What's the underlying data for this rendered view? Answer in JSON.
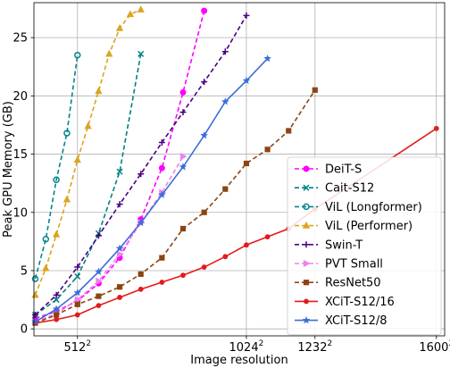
{
  "chart_data": {
    "type": "line",
    "title": "",
    "xlabel": "Image resolution",
    "ylabel": "Peak GPU Memory (GB)",
    "xlim": [
      380,
      1625
    ],
    "ylim": [
      -0.6,
      28
    ],
    "xticks": [
      {
        "value": 512,
        "base": "512",
        "exp": "2"
      },
      {
        "value": 1024,
        "base": "1024",
        "exp": "2"
      },
      {
        "value": 1232,
        "base": "1232",
        "exp": "2"
      },
      {
        "value": 1600,
        "base": "1600",
        "exp": "2"
      }
    ],
    "yticks": [
      0,
      5,
      10,
      15,
      20,
      25
    ],
    "grid": true,
    "legend_position": "lower-right",
    "series": [
      {
        "name": "DeiT-S",
        "color": "#ff00ff",
        "marker": "circle",
        "x": [
          384,
          448,
          512,
          576,
          640,
          704,
          768,
          832,
          896
        ],
        "y": [
          0.9,
          1.5,
          2.4,
          3.9,
          6.1,
          9.4,
          13.8,
          20.3,
          27.3
        ]
      },
      {
        "name": "Cait-S12",
        "color": "#008080",
        "marker": "x",
        "x": [
          384,
          448,
          512,
          576,
          640,
          704
        ],
        "y": [
          1.2,
          2.5,
          4.5,
          8.2,
          13.5,
          23.6
        ]
      },
      {
        "name": "ViL (Longformer)",
        "color": "#00868b",
        "marker": "circle-open",
        "x": [
          384,
          416,
          448,
          480,
          512
        ],
        "y": [
          4.3,
          7.7,
          12.8,
          16.8,
          23.5
        ]
      },
      {
        "name": "ViL (Performer)",
        "color": "#daa520",
        "marker": "triangle",
        "x": [
          384,
          416,
          448,
          480,
          512,
          544,
          576,
          608,
          640,
          672,
          704
        ],
        "y": [
          2.9,
          5.2,
          8.1,
          11.1,
          14.5,
          17.4,
          20.4,
          23.6,
          25.8,
          27.0,
          27.4
        ]
      },
      {
        "name": "Swin-T",
        "color": "#4b0082",
        "marker": "plus",
        "x": [
          384,
          448,
          512,
          576,
          640,
          704,
          768,
          832,
          896,
          960,
          1024
        ],
        "y": [
          1.2,
          2.9,
          5.3,
          8.0,
          10.7,
          13.3,
          16.0,
          18.6,
          21.2,
          23.8,
          26.9
        ]
      },
      {
        "name": "PVT Small",
        "color": "#ee82ee",
        "marker": "triangle-right",
        "x": [
          384,
          448,
          512,
          576,
          640,
          704,
          768,
          832
        ],
        "y": [
          0.6,
          1.3,
          2.5,
          4.1,
          6.4,
          9.1,
          11.7,
          14.8
        ]
      },
      {
        "name": "ResNet50",
        "color": "#8b4513",
        "marker": "square",
        "x": [
          384,
          448,
          512,
          576,
          640,
          704,
          768,
          832,
          896,
          960,
          1024,
          1088,
          1152,
          1232
        ],
        "y": [
          0.5,
          1.2,
          2.1,
          2.8,
          3.6,
          4.7,
          6.1,
          8.6,
          10.0,
          12.0,
          14.2,
          15.4,
          17.0,
          20.5
        ]
      },
      {
        "name": "XCiT-S12/16",
        "color": "#e31a1c",
        "marker": "circle-small",
        "x": [
          384,
          448,
          512,
          576,
          640,
          704,
          768,
          832,
          896,
          960,
          1024,
          1088,
          1152,
          1232,
          1600
        ],
        "y": [
          0.5,
          0.8,
          1.2,
          2.0,
          2.7,
          3.4,
          4.0,
          4.6,
          5.3,
          6.2,
          7.2,
          7.9,
          8.6,
          10.3,
          17.2
        ]
      },
      {
        "name": "XCiT-S12/8",
        "color": "#3a6fd8",
        "marker": "star",
        "x": [
          384,
          448,
          512,
          576,
          640,
          704,
          768,
          832,
          896,
          960,
          1024,
          1088
        ],
        "y": [
          0.6,
          1.7,
          3.1,
          4.9,
          6.9,
          9.1,
          11.5,
          13.9,
          16.6,
          19.5,
          21.3,
          23.2
        ]
      }
    ]
  }
}
